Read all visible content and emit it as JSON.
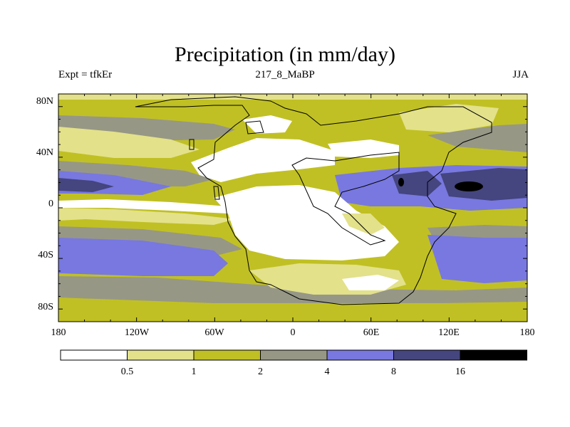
{
  "header": {
    "title": "Precipitation (in mm/day)",
    "left_label": "Expt = tfkEr",
    "center_label": "217_8_MaBP",
    "right_label": "JJA"
  },
  "map": {
    "lat_ticks": [
      "80N",
      "40N",
      "0",
      "40S",
      "80S"
    ],
    "lon_ticks": [
      "180",
      "120W",
      "60W",
      "0",
      "60E",
      "120E",
      "180"
    ]
  },
  "colorbar": {
    "levels": [
      "0.5",
      "1",
      "2",
      "4",
      "8",
      "16"
    ],
    "colors": [
      "#ffffff",
      "#e3e18a",
      "#c0c024",
      "#979786",
      "#7878e0",
      "#45457f",
      "#000000"
    ]
  }
}
